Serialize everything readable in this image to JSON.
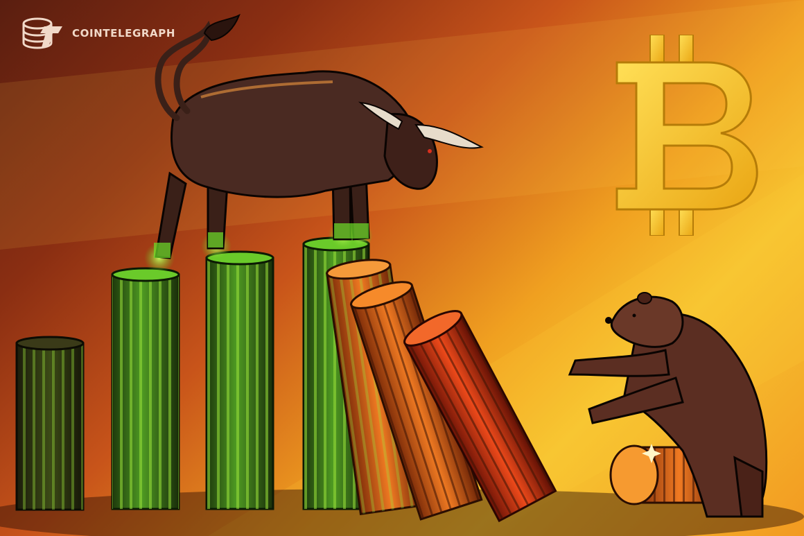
{
  "brand": {
    "name": "COINTELEGRAPH",
    "logo_icon": "cointelegraph-logo-icon",
    "color": "#f1d9c9"
  },
  "scene": {
    "symbol_icon": "bitcoin-symbol-icon",
    "bull_icon": "bull-figure-icon",
    "bear_icon": "bear-figure-icon",
    "colors": {
      "green_pillar": "#3f7d1c",
      "green_glow": "#8df03a",
      "orange_pillar": "#e8631f",
      "red_pillar": "#d83a17",
      "bitcoin": "#f5c21c",
      "bull": "#4a2a22",
      "bear": "#5b2e22"
    }
  }
}
